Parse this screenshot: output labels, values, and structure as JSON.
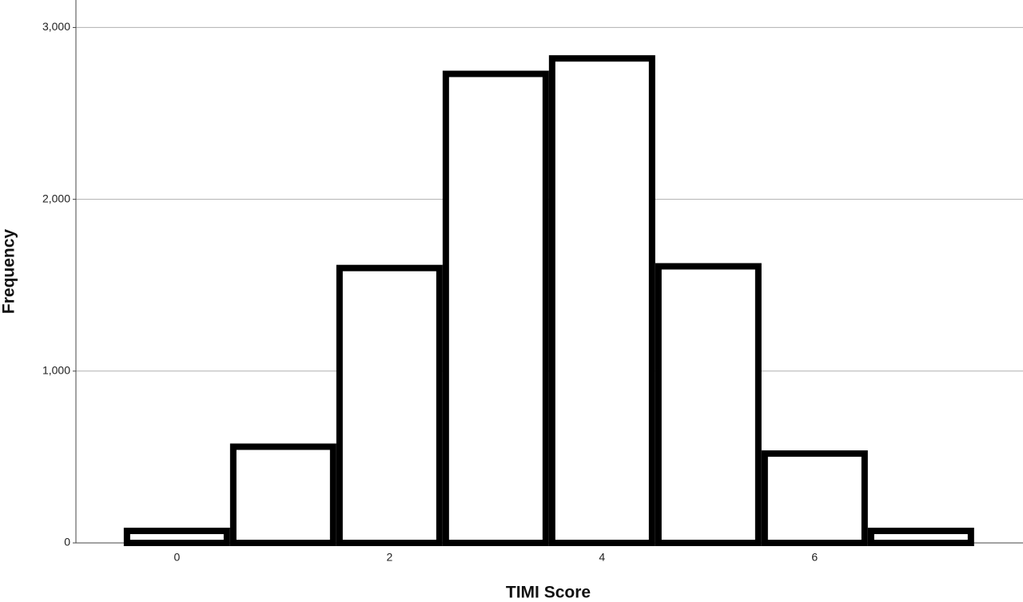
{
  "chart_data": {
    "type": "histogram",
    "x_label": "TIMI Score",
    "y_label": "Frequency",
    "bins": [
      -0.5,
      0.5,
      1.5,
      2.5,
      3.5,
      4.5,
      5.5,
      6.5,
      7.5
    ],
    "values": [
      70,
      560,
      1600,
      2730,
      2820,
      1610,
      520,
      70
    ],
    "color": "#ffffff",
    "edge_color": "#000000",
    "xlim": [
      -0.95,
      7.96
    ],
    "xticks": [
      0,
      2,
      4,
      6
    ],
    "ylim": [
      0,
      3160
    ],
    "yticks": [
      0,
      {
        "value": 1000,
        "label": "1,000"
      },
      {
        "value": 2000,
        "label": "2,000"
      },
      {
        "value": 3000,
        "label": "3,000"
      }
    ],
    "grid": true
  }
}
